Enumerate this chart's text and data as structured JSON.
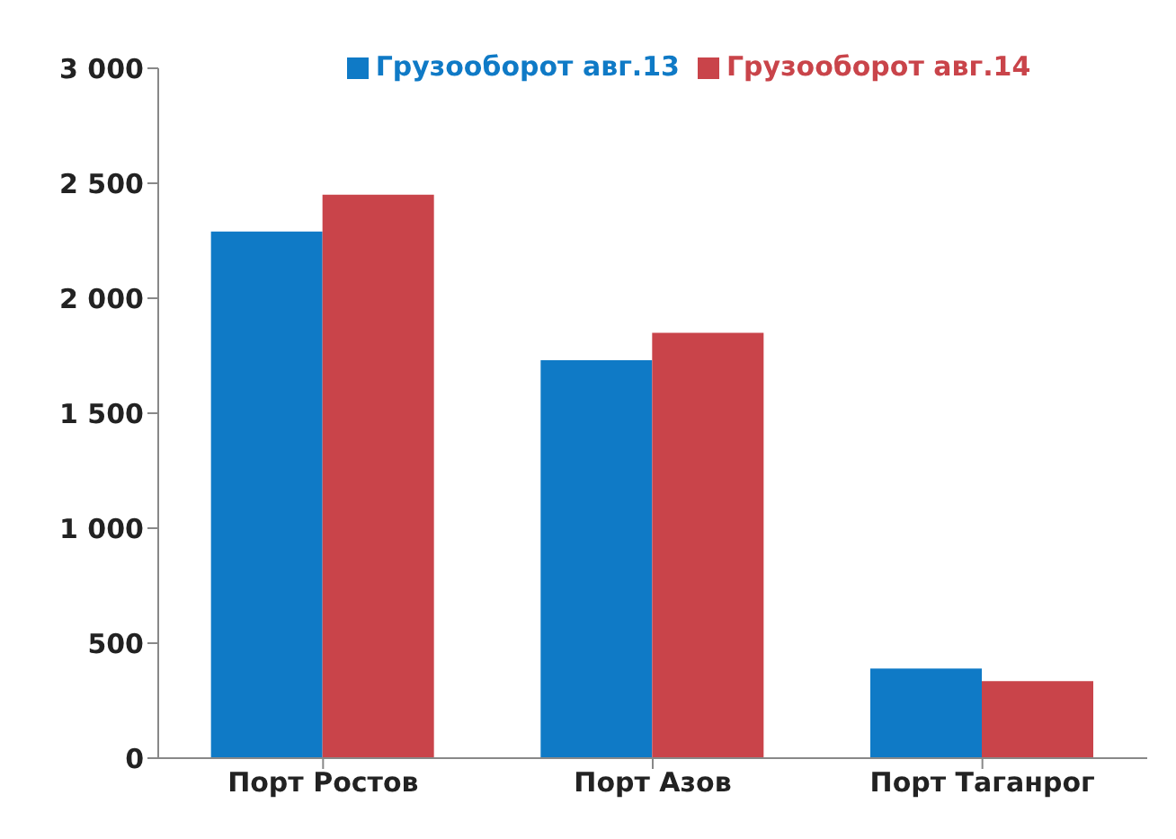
{
  "chart_data": {
    "type": "bar",
    "categories": [
      "Порт Ростов",
      "Порт Азов",
      "Порт Таганрог"
    ],
    "series": [
      {
        "name": "Грузооборот авг.13",
        "color": "#0f7ac6",
        "values": [
          2290,
          1730,
          390
        ]
      },
      {
        "name": "Грузооборот авг.14",
        "color": "#c9444a",
        "values": [
          2450,
          1850,
          335
        ]
      }
    ],
    "ylim": [
      0,
      3000
    ],
    "yticks": [
      0,
      {
        "value": 500,
        "label": "500"
      },
      {
        "value": 1000,
        "label": "1 000"
      },
      {
        "value": 1500,
        "label": "1 500"
      },
      {
        "value": 2000,
        "label": "2 000"
      },
      {
        "value": 2500,
        "label": "2 500"
      },
      {
        "value": 3000,
        "label": "3 000"
      }
    ],
    "grid": false,
    "legend": "top"
  }
}
